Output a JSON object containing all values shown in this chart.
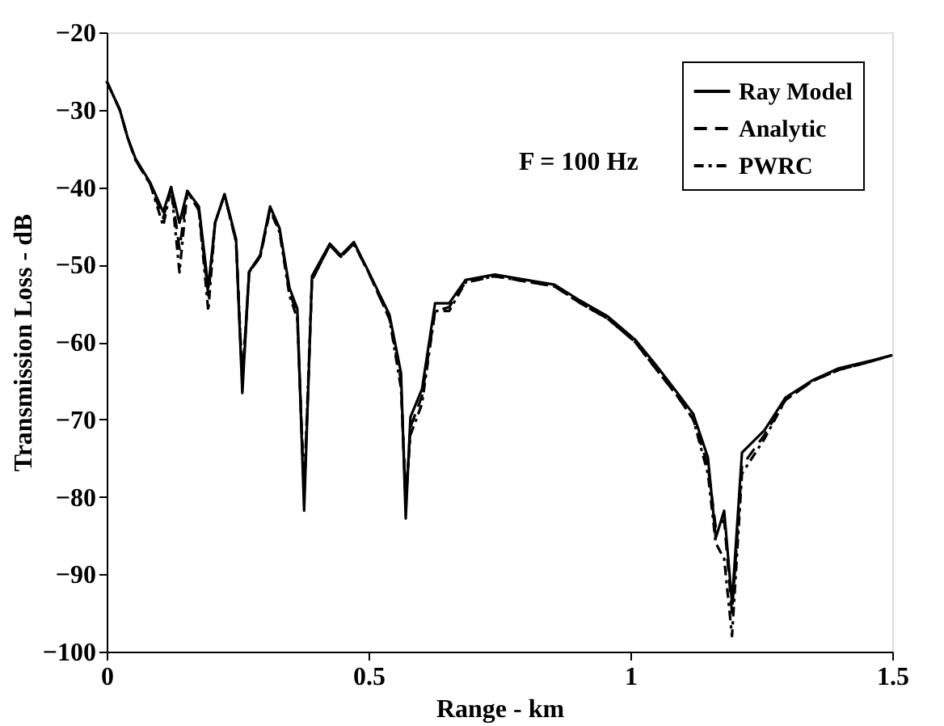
{
  "chart_data": {
    "type": "line",
    "xlabel": "Range - km",
    "ylabel": "Transmission Loss - dB",
    "annotations": [
      "F = 100 Hz"
    ],
    "xlim": [
      0,
      1.5
    ],
    "xticks": [
      0,
      0.5,
      1,
      1.5
    ],
    "ylim": [
      -100,
      -20
    ],
    "yticks": [
      -100,
      -90,
      -80,
      -70,
      -60,
      -50,
      -40,
      -30,
      -20
    ],
    "grid": false,
    "legend": "top right",
    "marker": "none",
    "x": [
      0,
      0.025,
      0.04,
      0.055,
      0.083,
      0.108,
      0.123,
      0.139,
      0.154,
      0.176,
      0.194,
      0.207,
      0.225,
      0.247,
      0.259,
      0.272,
      0.293,
      0.312,
      0.33,
      0.349,
      0.364,
      0.377,
      0.392,
      0.426,
      0.447,
      0.472,
      0.5,
      0.54,
      0.562,
      0.571,
      0.58,
      0.602,
      0.627,
      0.654,
      0.685,
      0.741,
      0.802,
      0.855,
      0.905,
      0.957,
      1.009,
      1.049,
      1.09,
      1.12,
      1.148,
      1.163,
      1.179,
      1.194,
      1.213,
      1.256,
      1.296,
      1.349,
      1.398,
      1.46,
      1.5
    ],
    "series": [
      {
        "name": "Ray Model",
        "color": "#000000",
        "line_style": "solid",
        "values": [
          -26.3,
          -30,
          -33.6,
          -36.3,
          -39.4,
          -43.2,
          -40,
          -44.6,
          -40.5,
          -42.5,
          -53,
          -44.6,
          -40.9,
          -46.7,
          -66.6,
          -50.9,
          -48.8,
          -42.5,
          -45.3,
          -53,
          -55.7,
          -81.8,
          -51.5,
          -47.3,
          -48.8,
          -47.1,
          -50.9,
          -56.5,
          -64,
          -82.8,
          -69.7,
          -66.1,
          -55,
          -55,
          -52,
          -51.3,
          -52,
          -52.6,
          -54.7,
          -56.7,
          -59.7,
          -63,
          -66.6,
          -69.3,
          -74.9,
          -85.3,
          -81.8,
          -93.7,
          -74.3,
          -71.4,
          -67.2,
          -64.9,
          -63.4,
          -62.4,
          -61.7
        ]
      },
      {
        "name": "Analytic",
        "color": "#000000",
        "line_style": "dashed",
        "values": [
          -26.3,
          -30,
          -33.6,
          -36.5,
          -39.6,
          -44,
          -40,
          -48,
          -40.5,
          -43,
          -54,
          -44.6,
          -41,
          -47,
          -65,
          -51,
          -49,
          -42.8,
          -45.5,
          -53.5,
          -56.5,
          -80,
          -52,
          -47.5,
          -49,
          -47.3,
          -51,
          -57,
          -65,
          -81,
          -71,
          -67,
          -56,
          -55.5,
          -52.3,
          -51.5,
          -52.2,
          -52.8,
          -55,
          -57,
          -60,
          -63.5,
          -67,
          -70,
          -76,
          -84,
          -83,
          -95,
          -76,
          -72,
          -67.5,
          -65,
          -63.6,
          -62.5,
          -61.7
        ]
      },
      {
        "name": "PWRC",
        "color": "#000000",
        "line_style": "dotted",
        "values": [
          -26.3,
          -30,
          -33.6,
          -36.5,
          -39.6,
          -45,
          -40,
          -51,
          -40.5,
          -43,
          -56,
          -44.6,
          -41,
          -47,
          -65,
          -51,
          -49,
          -43,
          -45.8,
          -54,
          -57,
          -79,
          -52,
          -47.5,
          -49,
          -47.3,
          -51,
          -57,
          -66,
          -80,
          -72,
          -68,
          -56,
          -56,
          -52.3,
          -51.5,
          -52.2,
          -52.8,
          -55,
          -57,
          -60,
          -63.5,
          -67,
          -70,
          -77,
          -86,
          -88,
          -98,
          -77,
          -72.5,
          -67.5,
          -65,
          -63.6,
          -62.5,
          -61.7
        ]
      }
    ]
  }
}
